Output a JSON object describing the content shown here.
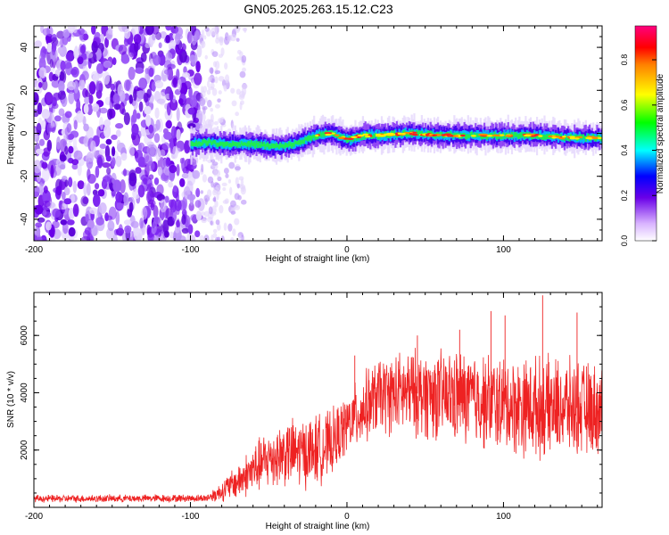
{
  "title": "GN05.2025.263.15.12.C23",
  "chart_data": [
    {
      "type": "heatmap",
      "name": "spectrogram",
      "xlabel": "Height of straight line (km)",
      "ylabel": "Frequency (Hz)",
      "xlim": [
        -200,
        163
      ],
      "ylim": [
        -50,
        50
      ],
      "xticks": [
        -200,
        -100,
        0,
        100
      ],
      "yticks": [
        -40,
        -20,
        0,
        20,
        40
      ],
      "ridge": [
        {
          "x": -100,
          "y": -5
        },
        {
          "x": -90,
          "y": -4
        },
        {
          "x": -80,
          "y": -5
        },
        {
          "x": -70,
          "y": -5
        },
        {
          "x": -60,
          "y": -5
        },
        {
          "x": -50,
          "y": -6
        },
        {
          "x": -40,
          "y": -6
        },
        {
          "x": -30,
          "y": -4
        },
        {
          "x": -20,
          "y": -1
        },
        {
          "x": -10,
          "y": 0
        },
        {
          "x": 0,
          "y": -3
        },
        {
          "x": 10,
          "y": -1
        },
        {
          "x": 20,
          "y": -1
        },
        {
          "x": 40,
          "y": 0
        },
        {
          "x": 60,
          "y": -1
        },
        {
          "x": 80,
          "y": -1
        },
        {
          "x": 100,
          "y": -1
        },
        {
          "x": 120,
          "y": -1
        },
        {
          "x": 140,
          "y": -2
        },
        {
          "x": 163,
          "y": -2
        }
      ],
      "colorbar": {
        "label": "Normalized spectral amplitude",
        "range": [
          0,
          0.95
        ],
        "ticks": [
          "0.0",
          "0.2",
          "0.4",
          "0.6",
          "0.8"
        ],
        "tick_values": [
          0,
          0.2,
          0.4,
          0.6,
          0.8
        ]
      }
    },
    {
      "type": "line",
      "name": "snr",
      "xlabel": "Height of straight line (km)",
      "ylabel": "SNR (10 * v/v)",
      "xlim": [
        -200,
        163
      ],
      "ylim": [
        0,
        7500
      ],
      "xticks": [
        -200,
        -100,
        0,
        100
      ],
      "yticks": [
        2000,
        4000,
        6000
      ],
      "color": "#ee2222",
      "envelope": [
        {
          "x": -200,
          "mean": 300,
          "spread": 150
        },
        {
          "x": -90,
          "mean": 320,
          "spread": 150
        },
        {
          "x": -82,
          "mean": 500,
          "spread": 350
        },
        {
          "x": -70,
          "mean": 900,
          "spread": 700
        },
        {
          "x": -60,
          "mean": 1300,
          "spread": 1000
        },
        {
          "x": -50,
          "mean": 1700,
          "spread": 1200
        },
        {
          "x": -40,
          "mean": 1900,
          "spread": 1300
        },
        {
          "x": -30,
          "mean": 1900,
          "spread": 1400
        },
        {
          "x": -20,
          "mean": 2000,
          "spread": 1400
        },
        {
          "x": -10,
          "mean": 2200,
          "spread": 1300
        },
        {
          "x": 0,
          "mean": 2900,
          "spread": 1200
        },
        {
          "x": 10,
          "mean": 3400,
          "spread": 1400
        },
        {
          "x": 20,
          "mean": 3900,
          "spread": 1500
        },
        {
          "x": 40,
          "mean": 4000,
          "spread": 1700
        },
        {
          "x": 60,
          "mean": 3900,
          "spread": 1800
        },
        {
          "x": 80,
          "mean": 3800,
          "spread": 1900
        },
        {
          "x": 100,
          "mean": 3600,
          "spread": 1900
        },
        {
          "x": 120,
          "mean": 3500,
          "spread": 2000
        },
        {
          "x": 140,
          "mean": 3500,
          "spread": 1900
        },
        {
          "x": 163,
          "mean": 3400,
          "spread": 1800
        }
      ],
      "peaks": [
        {
          "x": 125,
          "y": 7400
        },
        {
          "x": 101,
          "y": 6700
        },
        {
          "x": 92,
          "y": 6850
        },
        {
          "x": 147,
          "y": 6800
        },
        {
          "x": 72,
          "y": 6200
        },
        {
          "x": 45,
          "y": 6000
        },
        {
          "x": 5,
          "y": 5300
        }
      ]
    }
  ]
}
